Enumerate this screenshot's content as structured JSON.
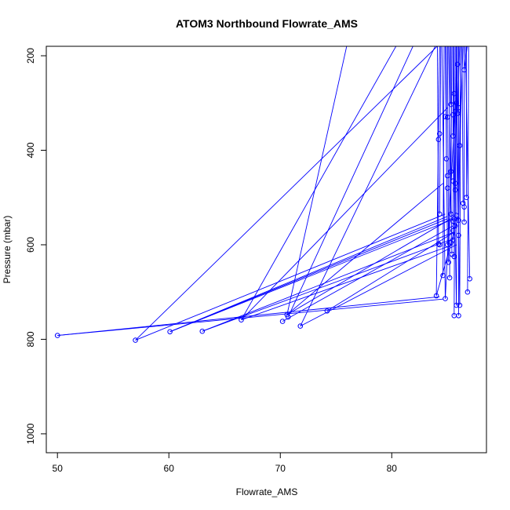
{
  "chart_data": {
    "type": "line",
    "title": "ATOM3 Northbound Flowrate_AMS",
    "xlabel": "Flowrate_AMS",
    "ylabel": "Pressure (mbar)",
    "xlim": [
      49,
      88.5
    ],
    "ylim": [
      1040,
      180
    ],
    "y_axis_inverted": true,
    "x_ticks": [
      50,
      60,
      70,
      80
    ],
    "y_ticks": [
      200,
      400,
      600,
      800,
      1000
    ],
    "grid": false,
    "series": [
      {
        "color": "#0000ff",
        "marker": "open-circle",
        "points": [
          [
            85.9,
            218
          ],
          [
            86.5,
            230
          ],
          [
            85.6,
            280
          ],
          [
            85.8,
            300
          ],
          [
            85.3,
            303
          ],
          [
            86.0,
            310
          ],
          [
            85.7,
            318
          ],
          [
            85.9,
            322
          ],
          [
            85.5,
            325
          ],
          [
            85.0,
            330
          ],
          [
            84.8,
            329
          ],
          [
            84.3,
            365
          ],
          [
            85.5,
            370
          ],
          [
            84.2,
            377
          ],
          [
            86.1,
            390
          ],
          [
            84.9,
            418
          ],
          [
            85.3,
            445
          ],
          [
            85.0,
            454
          ],
          [
            85.5,
            465
          ],
          [
            85.7,
            470
          ],
          [
            85.0,
            480
          ],
          [
            85.7,
            484
          ],
          [
            86.7,
            500
          ],
          [
            86.4,
            512
          ],
          [
            86.5,
            520
          ],
          [
            84.3,
            535
          ],
          [
            85.3,
            535
          ],
          [
            85.8,
            538
          ],
          [
            85.6,
            545
          ],
          [
            86.0,
            548
          ],
          [
            85.5,
            550
          ],
          [
            86.5,
            552
          ],
          [
            85.7,
            560
          ],
          [
            85.5,
            570
          ],
          [
            86.0,
            580
          ],
          [
            85.5,
            590
          ],
          [
            85.3,
            595
          ],
          [
            84.2,
            598
          ],
          [
            84.3,
            600
          ],
          [
            85.0,
            600
          ],
          [
            85.4,
            620
          ],
          [
            85.6,
            625
          ],
          [
            85.1,
            637
          ],
          [
            84.6,
            665
          ],
          [
            85.2,
            670
          ],
          [
            87.0,
            672
          ],
          [
            86.8,
            700
          ],
          [
            84.0,
            708
          ],
          [
            84.8,
            714
          ],
          [
            85.8,
            728
          ],
          [
            86.1,
            728
          ],
          [
            74.2,
            740
          ],
          [
            70.6,
            748
          ],
          [
            85.6,
            750
          ],
          [
            86.0,
            750
          ],
          [
            70.7,
            753
          ],
          [
            66.5,
            759
          ],
          [
            70.2,
            762
          ],
          [
            71.8,
            772
          ],
          [
            63.0,
            783
          ],
          [
            60.1,
            784
          ],
          [
            50.0,
            792
          ],
          [
            57.0,
            802
          ]
        ],
        "segments": [
          [
            50.0,
            792,
            84.3,
            710
          ],
          [
            50.0,
            792,
            84.6,
            715
          ],
          [
            57.0,
            802,
            84.8,
            535
          ],
          [
            57.0,
            802,
            84.3,
            175
          ],
          [
            60.1,
            784,
            85.6,
            545
          ],
          [
            60.1,
            784,
            85.0,
            540
          ],
          [
            63.0,
            783,
            85.4,
            575
          ],
          [
            63.0,
            783,
            85.2,
            590
          ],
          [
            66.5,
            759,
            85.0,
            310
          ],
          [
            66.5,
            759,
            85.5,
            600
          ],
          [
            70.6,
            748,
            84.6,
            470
          ],
          [
            70.6,
            748,
            85.3,
            545
          ],
          [
            70.7,
            753,
            82.0,
            175
          ],
          [
            70.2,
            762,
            85.5,
            560
          ],
          [
            71.8,
            772,
            84.0,
            175
          ],
          [
            71.8,
            772,
            85.8,
            600
          ],
          [
            74.2,
            740,
            85.5,
            575
          ],
          [
            70.6,
            748,
            76.0,
            175
          ],
          [
            66.5,
            759,
            80.5,
            175
          ],
          [
            60.1,
            784,
            85.0,
            545
          ],
          [
            84.0,
            708,
            84.3,
            175
          ],
          [
            84.8,
            714,
            84.5,
            175
          ],
          [
            85.0,
            600,
            84.8,
            175
          ],
          [
            85.1,
            637,
            85.0,
            175
          ],
          [
            85.2,
            670,
            85.2,
            175
          ],
          [
            85.3,
            535,
            85.4,
            175
          ],
          [
            85.5,
            590,
            85.6,
            175
          ],
          [
            85.6,
            750,
            85.7,
            175
          ],
          [
            85.7,
            560,
            85.8,
            175
          ],
          [
            85.8,
            728,
            85.9,
            175
          ],
          [
            86.0,
            750,
            86.0,
            175
          ],
          [
            86.1,
            728,
            86.2,
            175
          ],
          [
            86.4,
            512,
            86.3,
            175
          ],
          [
            86.5,
            552,
            86.5,
            175
          ],
          [
            86.7,
            500,
            86.7,
            175
          ],
          [
            86.8,
            700,
            86.9,
            175
          ],
          [
            87.0,
            672,
            86.6,
            175
          ],
          [
            84.2,
            598,
            84.1,
            175
          ],
          [
            84.3,
            535,
            84.4,
            175
          ],
          [
            84.9,
            418,
            84.9,
            175
          ],
          [
            85.3,
            303,
            85.3,
            175
          ],
          [
            85.5,
            370,
            85.5,
            175
          ],
          [
            85.7,
            470,
            85.8,
            175
          ],
          [
            85.9,
            322,
            86.1,
            175
          ],
          [
            86.0,
            580,
            86.2,
            175
          ],
          [
            86.1,
            390,
            86.4,
            175
          ],
          [
            85.4,
            620,
            85.1,
            175
          ],
          [
            85.6,
            625,
            85.9,
            175
          ],
          [
            84.6,
            665,
            84.7,
            175
          ],
          [
            86.5,
            230,
            86.8,
            175
          ],
          [
            84.0,
            708,
            86.0,
            540
          ],
          [
            84.8,
            714,
            85.7,
            300
          ],
          [
            85.8,
            728,
            85.5,
            330
          ],
          [
            86.1,
            728,
            85.8,
            230
          ]
        ]
      }
    ]
  }
}
